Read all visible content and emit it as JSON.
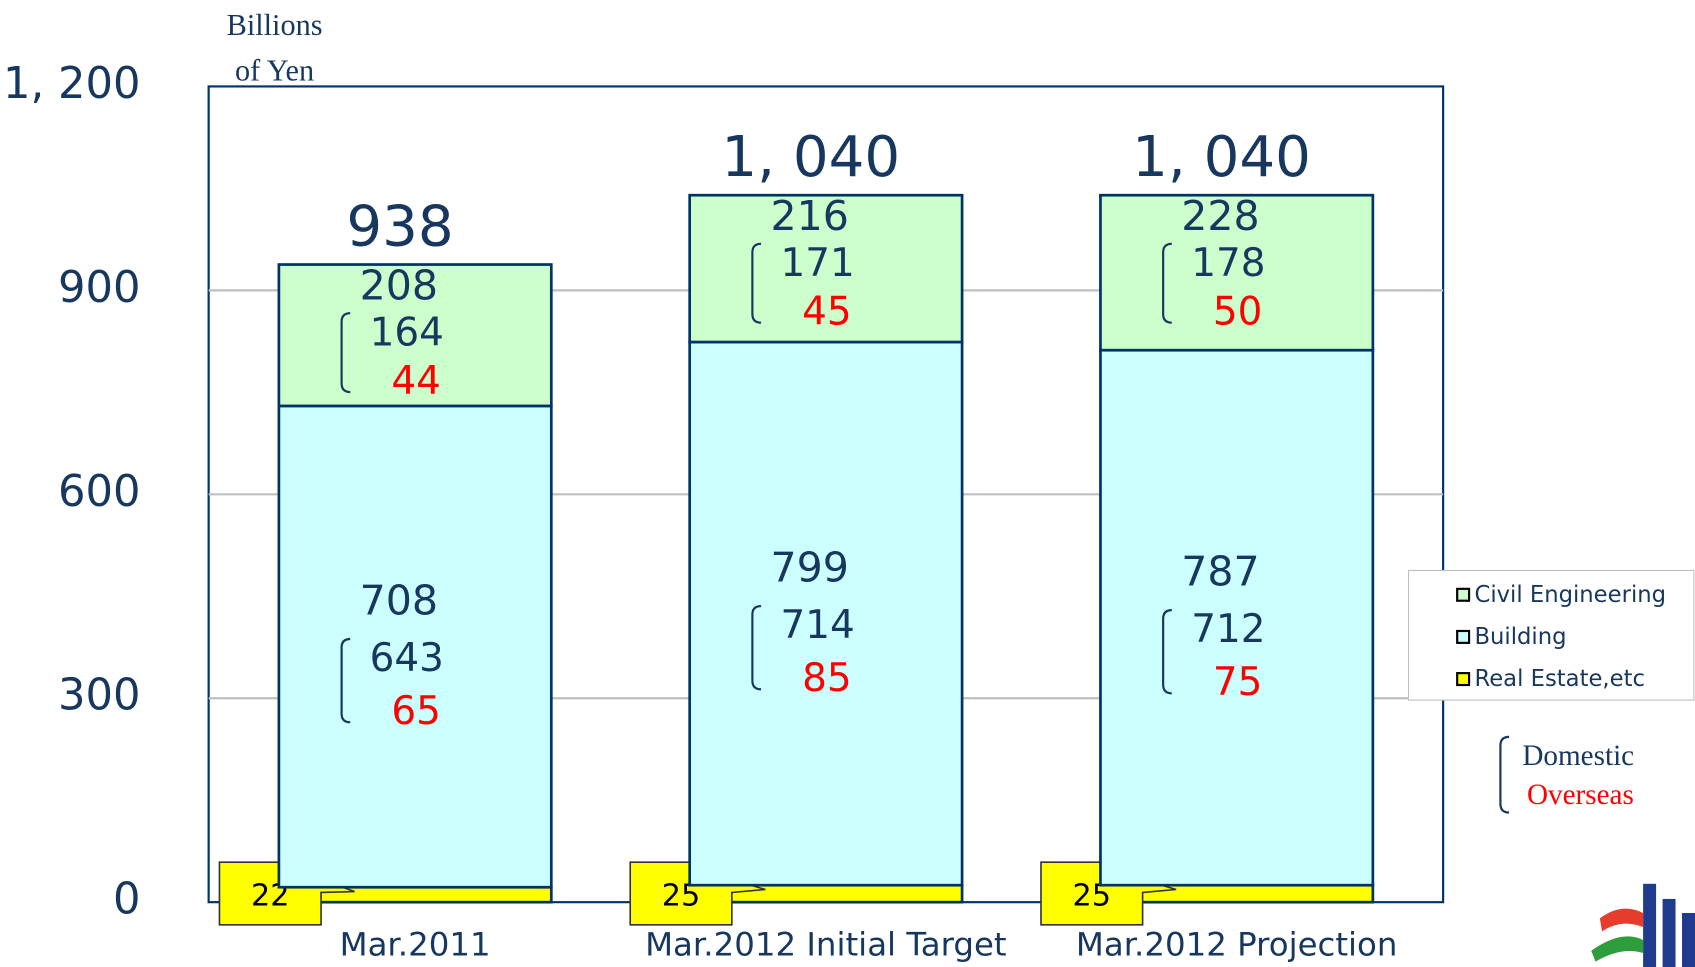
{
  "chart_data": {
    "type": "stacked_bar",
    "y_label_lines": [
      "Billions",
      "of Yen"
    ],
    "categories": [
      "Mar.2011",
      "Mar.2012 Initial Target",
      "Mar.2012 Projection"
    ],
    "series": [
      {
        "name": "Real Estate,etc",
        "color": "#ffff00",
        "values": [
          22,
          25,
          25
        ]
      },
      {
        "name": "Building",
        "color": "#ccffff",
        "values": [
          708,
          799,
          787
        ],
        "domestic": [
          643,
          714,
          712
        ],
        "overseas": [
          65,
          85,
          75
        ]
      },
      {
        "name": "Civil Engineering",
        "color": "#ccffcc",
        "values": [
          208,
          216,
          228
        ],
        "domestic": [
          164,
          171,
          178
        ],
        "overseas": [
          44,
          45,
          50
        ]
      }
    ],
    "totals": [
      938,
      1040,
      1040
    ],
    "totals_value_labels": [
      "938",
      "1, 040",
      "1, 040"
    ],
    "key": [
      "Domestic",
      "Overseas"
    ],
    "ylim": [
      0,
      1200
    ],
    "yticks": [
      0,
      300,
      600,
      900,
      {
        "value": 1200,
        "label": "1, 200"
      }
    ],
    "grid": true
  }
}
